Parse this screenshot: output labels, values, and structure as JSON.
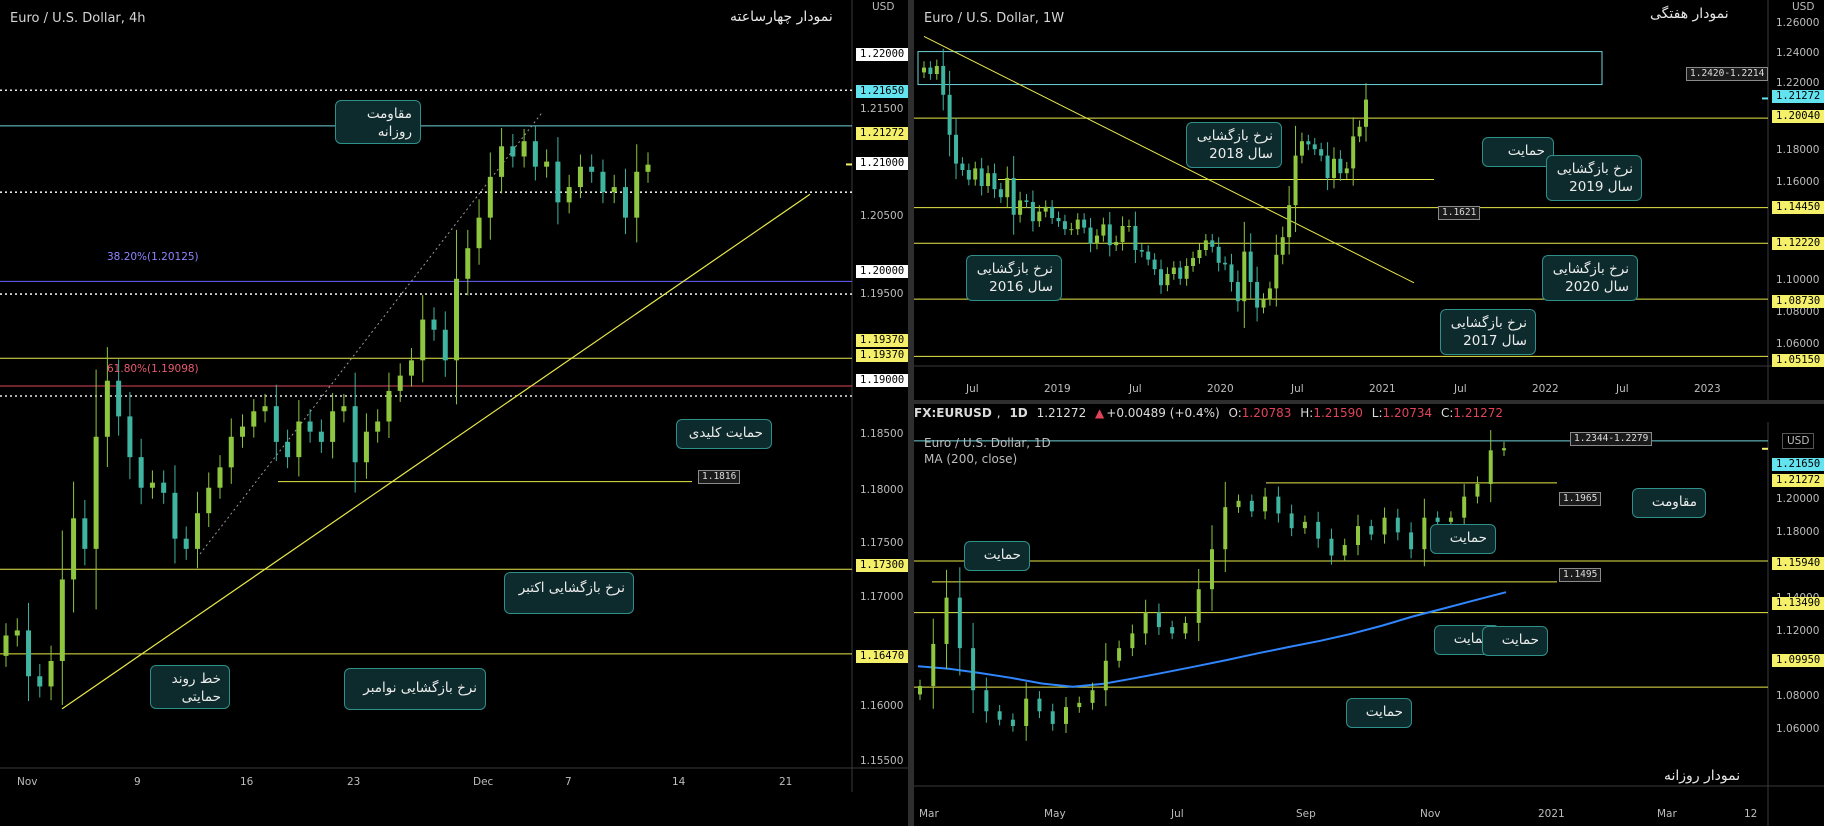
{
  "colors": {
    "bg": "#000000",
    "up": "#8ec63f",
    "down": "#3fb4a0",
    "level_line": "#e8e84a",
    "cyan_line": "#6fd3da",
    "accent_yellow": "#f5f06a",
    "accent_cyan": "#63e3f0",
    "fib_blue": "#6a62ff",
    "fib_red": "#e0445a",
    "ma_line": "#2f86ff",
    "callout_fill": "#0d2a2c",
    "callout_border": "#2f8f8a"
  },
  "panels": {
    "p4h": {
      "title": "Euro / U.S. Dollar, 4h",
      "rtl_title": "نمودار چهارساعته",
      "currency": "USD",
      "y_ticks": [
        "1.21500",
        "1.20500",
        "1.19500",
        "1.18500",
        "1.18000",
        "1.17500",
        "1.17000",
        "1.16000",
        "1.15500"
      ],
      "x_ticks": [
        "Nov",
        "9",
        "16",
        "23",
        "Dec",
        "7",
        "14",
        "21"
      ],
      "price_labels": [
        "1.22000",
        "1.21650",
        "1.21272",
        "1.21000",
        "1.20000",
        "1.19370",
        "1.19370",
        "1.19000",
        "1.17300",
        "1.16470"
      ],
      "fib_labels": [
        "38.20%(1.20125)",
        "61.80%(1.19098)"
      ],
      "tags": [
        "1.1816"
      ],
      "callouts": [
        "مقاومت\nروزانه",
        "حمایت کلیدی",
        "نرخ بازگشایی اکتبر",
        "خط روند\nحمایتی",
        "نرخ بازگشایی نوامبر"
      ]
    },
    "p1w": {
      "title": "Euro / U.S. Dollar, 1W",
      "rtl_title": "نمودار هفتگی",
      "currency": "USD",
      "y_ticks": [
        "1.26000",
        "1.24000",
        "1.22000",
        "1.18000",
        "1.16000",
        "1.10000",
        "1.08000",
        "1.06000"
      ],
      "x_ticks": [
        "Jul",
        "2019",
        "Jul",
        "2020",
        "Jul",
        "2021",
        "Jul",
        "2022",
        "Jul",
        "2023"
      ],
      "price_labels": [
        "1.21272",
        "1.20040",
        "1.14450",
        "1.12220",
        "1.08730",
        "1.05150"
      ],
      "tags": [
        "1.2420-1.2214",
        "1.1621"
      ],
      "callouts": [
        "نرخ بازگشایی\nسال 2018",
        "حمایت",
        "نرخ بازگشایی\nسال 2019",
        "نرخ بازگشایی\nسال 2016",
        "نرخ بازگشایی\nسال 2020",
        "نرخ بازگشایی\nسال 2017"
      ]
    },
    "p1d": {
      "header": {
        "symbol": "FX:EURUSD",
        "interval": "1D",
        "price": "1.21272",
        "change": "+0.00489 (+0.4%)",
        "o_label": "O:",
        "o": "1.20783",
        "h_label": "H:",
        "h": "1.21590",
        "l_label": "L:",
        "l": "1.20734",
        "c_label": "C:",
        "c": "1.21272"
      },
      "title": "Euro / U.S. Dollar, 1D",
      "ma_label": "MA (200, close)",
      "rtl_title": "نمودار روزانه",
      "currency": "USD",
      "y_ticks": [
        "1.20000",
        "1.18000",
        "1.14000",
        "1.12000",
        "1.08000",
        "1.06000"
      ],
      "x_ticks": [
        "Mar",
        "May",
        "Jul",
        "Sep",
        "Nov",
        "2021",
        "Mar",
        "12"
      ],
      "price_labels": [
        "1.21650",
        "1.21272",
        "1.15940",
        "1.13490",
        "1.09950"
      ],
      "tags": [
        "1.2344-1.2279",
        "1.1965",
        "1.1495"
      ],
      "callouts": [
        "مقاومت",
        "حمایت",
        "حمایت",
        "حمایت",
        "حمایت",
        "حمایت"
      ]
    }
  },
  "chart_data": [
    {
      "type": "candlestick",
      "title": "Euro / U.S. Dollar, 4h",
      "ylim": [
        1.1535,
        1.2265
      ],
      "levels": [
        1.22,
        1.2165,
        1.21,
        1.2,
        1.1937,
        1.19,
        1.173,
        1.1647
      ],
      "fib": [
        1.20125,
        1.19098
      ],
      "last": 1.21272,
      "key_support": 1.1816,
      "trendline": [
        [
          "Nov 4",
          1.1593
        ],
        [
          "Dec 11",
          1.2098
        ]
      ],
      "closes": [
        1.1665,
        1.167,
        1.1625,
        1.1615,
        1.164,
        1.172,
        1.178,
        1.175,
        1.186,
        1.1915,
        1.188,
        1.184,
        1.181,
        1.1815,
        1.1805,
        1.176,
        1.175,
        1.1785,
        1.181,
        1.183,
        1.186,
        1.187,
        1.1885,
        1.189,
        1.1855,
        1.184,
        1.1875,
        1.1865,
        1.1855,
        1.1885,
        1.189,
        1.1835,
        1.1865,
        1.1875,
        1.1905,
        1.192,
        1.1935,
        1.1975,
        1.1965,
        1.1935,
        1.2015,
        1.2045,
        1.2075,
        1.2115,
        1.2145,
        1.2135,
        1.215,
        1.2125,
        1.213,
        1.209,
        1.2105,
        1.2125,
        1.212,
        1.21,
        1.2105,
        1.2075,
        1.212,
        1.2127
      ]
    },
    {
      "type": "candlestick",
      "title": "Euro / U.S. Dollar, 1W",
      "ylim": [
        1.0455,
        1.2655
      ],
      "levels": [
        1.2004,
        1.1445,
        1.1222,
        1.0873,
        1.0515
      ],
      "zone": [
        1.2214,
        1.242
      ],
      "last": 1.21272,
      "closes": [
        1.232,
        1.228,
        1.233,
        1.215,
        1.19,
        1.172,
        1.168,
        1.162,
        1.169,
        1.158,
        1.166,
        1.156,
        1.151,
        1.163,
        1.14,
        1.149,
        1.148,
        1.136,
        1.142,
        1.145,
        1.138,
        1.136,
        1.131,
        1.131,
        1.137,
        1.132,
        1.122,
        1.127,
        1.134,
        1.121,
        1.123,
        1.133,
        1.133,
        1.118,
        1.117,
        1.112,
        1.106,
        1.096,
        1.103,
        1.107,
        1.1,
        1.108,
        1.113,
        1.118,
        1.124,
        1.12,
        1.11,
        1.109,
        1.098,
        1.086,
        1.117,
        1.098,
        1.082,
        1.087,
        1.094,
        1.115,
        1.126,
        1.146,
        1.177,
        1.186,
        1.184,
        1.181,
        1.177,
        1.163,
        1.175,
        1.166,
        1.169,
        1.189,
        1.195,
        1.212
      ]
    },
    {
      "type": "candlestick",
      "title": "Euro / U.S. Dollar, 1D",
      "ylim": [
        1.0525,
        1.2245
      ],
      "levels": [
        1.2165,
        1.1594,
        1.1349,
        1.0995
      ],
      "zone": [
        1.2279,
        1.2344
      ],
      "tags": [
        1.1965,
        1.1495
      ],
      "last": 1.21272,
      "ma200": [
        1.1094,
        1.1082,
        1.1062,
        1.1039,
        1.1012,
        1.0997,
        1.1011,
        1.1037,
        1.1065,
        1.1094,
        1.1124,
        1.1156,
        1.1186,
        1.1215,
        1.1248,
        1.1287,
        1.1331,
        1.1369,
        1.1408,
        1.1446
      ],
      "closes": [
        1.1,
        1.12,
        1.142,
        1.118,
        1.098,
        1.088,
        1.084,
        1.081,
        1.094,
        1.088,
        1.082,
        1.09,
        1.092,
        1.098,
        1.112,
        1.118,
        1.125,
        1.135,
        1.128,
        1.125,
        1.13,
        1.146,
        1.165,
        1.185,
        1.188,
        1.183,
        1.19,
        1.182,
        1.175,
        1.178,
        1.17,
        1.162,
        1.167,
        1.176,
        1.172,
        1.18,
        1.173,
        1.165,
        1.18,
        1.178,
        1.18,
        1.19,
        1.196,
        1.212,
        1.213
      ]
    }
  ]
}
